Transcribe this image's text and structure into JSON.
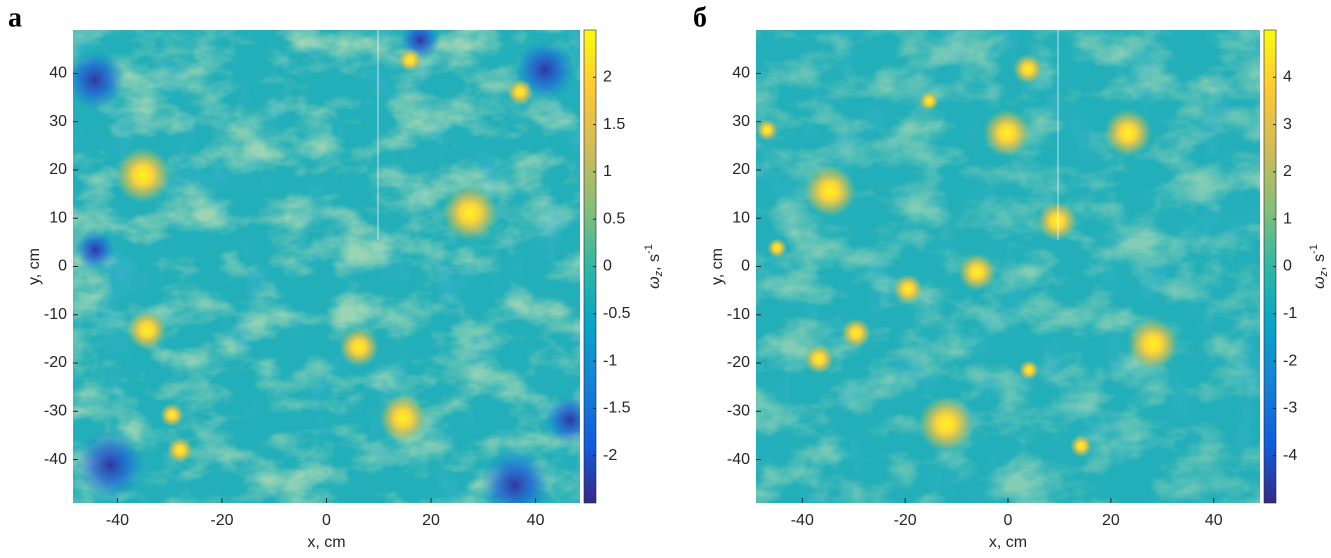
{
  "chart_data": [
    {
      "type": "heatmap",
      "panel_label": "а",
      "xlabel": "x, cm",
      "ylabel": "y, cm",
      "xlim": [
        -48.5,
        48.5
      ],
      "ylim": [
        -49,
        49
      ],
      "xticks": [
        -40,
        -20,
        0,
        20,
        40
      ],
      "yticks": [
        -40,
        -30,
        -20,
        -10,
        0,
        10,
        20,
        30,
        40
      ],
      "colormap": [
        "#352a87",
        "#0f5cdd",
        "#1481d6",
        "#06a4ca",
        "#2eb7a4",
        "#87bf77",
        "#d1bb59",
        "#fec832",
        "#f9fb0e"
      ],
      "colorbar": {
        "clim": [
          -2.5,
          2.5
        ],
        "ticks": [
          -2,
          -1.5,
          -1,
          -0.5,
          0,
          0.5,
          1,
          1.5,
          2
        ],
        "label": {
          "symbol": "ω",
          "sub": "z",
          "unit": ", s",
          "sup": "-1"
        }
      }
    },
    {
      "type": "heatmap",
      "panel_label": "б",
      "xlabel": "x, cm",
      "ylabel": "y, cm",
      "xlim": [
        -49,
        49
      ],
      "ylim": [
        -49,
        49
      ],
      "xticks": [
        -40,
        -20,
        0,
        20,
        40
      ],
      "yticks": [
        -40,
        -30,
        -20,
        -10,
        0,
        10,
        20,
        30,
        40
      ],
      "colormap": [
        "#352a87",
        "#0f5cdd",
        "#1481d6",
        "#06a4ca",
        "#2eb7a4",
        "#87bf77",
        "#d1bb59",
        "#fec832",
        "#f9fb0e"
      ],
      "colorbar": {
        "clim": [
          -5,
          5
        ],
        "ticks": [
          -4,
          -3,
          -2,
          -1,
          0,
          1,
          2,
          3,
          4
        ],
        "label": {
          "symbol": "ω",
          "sub": "z",
          "unit": ", s",
          "sup": "-1"
        }
      }
    }
  ]
}
